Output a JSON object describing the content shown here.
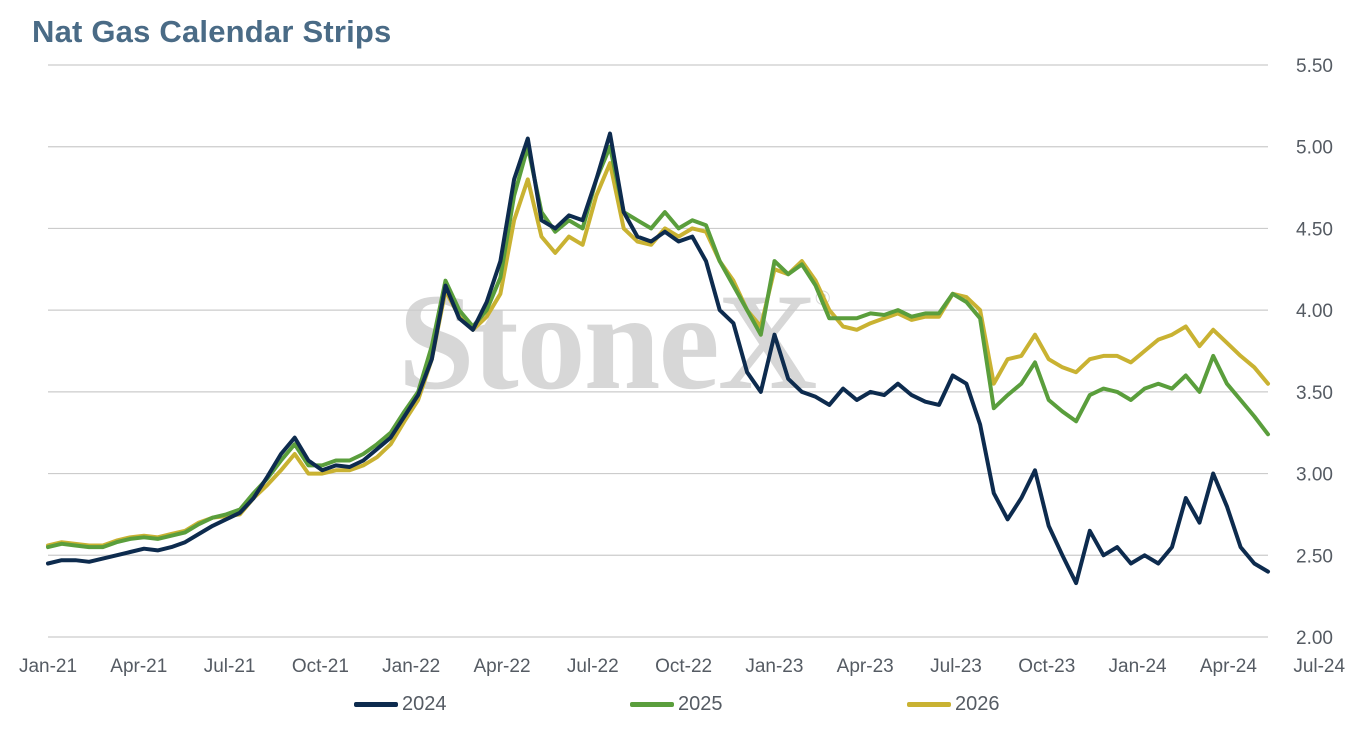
{
  "title": "Nat Gas Calendar Strips",
  "watermark": {
    "text": "StoneX",
    "mark": "®"
  },
  "colors": {
    "s2024": "#0d2b4e",
    "s2025": "#5a9e3c",
    "s2026": "#c9b232",
    "grid": "#cccccc",
    "title": "#4a6b86"
  },
  "chart_data": {
    "type": "line",
    "title": "Nat Gas Calendar Strips",
    "xlabel": "",
    "ylabel": "",
    "ylim": [
      2.0,
      5.5
    ],
    "yticks": [
      "5.50",
      "5.00",
      "4.50",
      "4.00",
      "3.50",
      "3.00",
      "2.50",
      "2.00"
    ],
    "ytick_values": [
      5.5,
      5.0,
      4.5,
      4.0,
      3.5,
      3.0,
      2.5,
      2.0
    ],
    "xticks": [
      "Jan-21",
      "Apr-21",
      "Jul-21",
      "Oct-21",
      "Jan-22",
      "Apr-22",
      "Jul-22",
      "Oct-22",
      "Jan-23",
      "Apr-23",
      "Jul-23",
      "Oct-23",
      "Jan-24",
      "Apr-24",
      "Jul-24"
    ],
    "y_axis_side": "right",
    "grid": true,
    "legend": "bottom",
    "series": [
      {
        "name": "2024",
        "color": "#0d2b4e",
        "values": [
          2.45,
          2.47,
          2.47,
          2.46,
          2.48,
          2.5,
          2.52,
          2.54,
          2.53,
          2.55,
          2.58,
          2.63,
          2.68,
          2.72,
          2.76,
          2.85,
          2.98,
          3.12,
          3.22,
          3.08,
          3.02,
          3.05,
          3.04,
          3.08,
          3.15,
          3.22,
          3.35,
          3.48,
          3.7,
          4.15,
          3.95,
          3.88,
          4.05,
          4.3,
          4.8,
          5.05,
          4.55,
          4.5,
          4.58,
          4.55,
          4.8,
          5.08,
          4.6,
          4.45,
          4.42,
          4.48,
          4.42,
          4.45,
          4.3,
          4.0,
          3.92,
          3.62,
          3.5,
          3.85,
          3.58,
          3.5,
          3.47,
          3.42,
          3.52,
          3.45,
          3.5,
          3.48,
          3.55,
          3.48,
          3.44,
          3.42,
          3.6,
          3.55,
          3.3,
          2.88,
          2.72,
          2.85,
          3.02,
          2.68,
          2.5,
          2.33,
          2.65,
          2.5,
          2.55,
          2.45,
          2.5,
          2.45,
          2.55,
          2.85,
          2.7,
          3.0,
          2.8,
          2.55,
          2.45,
          2.4
        ]
      },
      {
        "name": "2025",
        "color": "#5a9e3c",
        "values": [
          2.55,
          2.57,
          2.56,
          2.55,
          2.55,
          2.58,
          2.6,
          2.61,
          2.6,
          2.62,
          2.64,
          2.69,
          2.73,
          2.75,
          2.78,
          2.88,
          2.97,
          3.08,
          3.18,
          3.05,
          3.05,
          3.08,
          3.08,
          3.12,
          3.18,
          3.25,
          3.38,
          3.5,
          3.78,
          4.18,
          4.0,
          3.9,
          4.0,
          4.2,
          4.7,
          5.0,
          4.6,
          4.48,
          4.55,
          4.5,
          4.8,
          5.0,
          4.6,
          4.55,
          4.5,
          4.6,
          4.5,
          4.55,
          4.52,
          4.3,
          4.15,
          4.0,
          3.85,
          4.3,
          4.22,
          4.28,
          4.15,
          3.95,
          3.95,
          3.95,
          3.98,
          3.97,
          4.0,
          3.96,
          3.98,
          3.98,
          4.1,
          4.05,
          3.95,
          3.4,
          3.48,
          3.55,
          3.68,
          3.45,
          3.38,
          3.32,
          3.48,
          3.52,
          3.5,
          3.45,
          3.52,
          3.55,
          3.52,
          3.6,
          3.5,
          3.72,
          3.55,
          3.45,
          3.35,
          3.24
        ]
      },
      {
        "name": "2026",
        "color": "#c9b232",
        "values": [
          2.56,
          2.58,
          2.57,
          2.56,
          2.56,
          2.59,
          2.61,
          2.62,
          2.61,
          2.63,
          2.65,
          2.7,
          2.73,
          2.74,
          2.75,
          2.85,
          2.93,
          3.02,
          3.12,
          3.0,
          3.0,
          3.02,
          3.02,
          3.05,
          3.1,
          3.18,
          3.32,
          3.45,
          3.7,
          4.12,
          3.96,
          3.88,
          3.96,
          4.1,
          4.55,
          4.8,
          4.45,
          4.35,
          4.45,
          4.4,
          4.7,
          4.9,
          4.5,
          4.42,
          4.4,
          4.5,
          4.45,
          4.5,
          4.48,
          4.3,
          4.18,
          4.0,
          3.9,
          4.25,
          4.22,
          4.3,
          4.18,
          4.0,
          3.9,
          3.88,
          3.92,
          3.95,
          3.98,
          3.94,
          3.96,
          3.96,
          4.1,
          4.08,
          4.0,
          3.55,
          3.7,
          3.72,
          3.85,
          3.7,
          3.65,
          3.62,
          3.7,
          3.72,
          3.72,
          3.68,
          3.75,
          3.82,
          3.85,
          3.9,
          3.78,
          3.88,
          3.8,
          3.72,
          3.65,
          3.55
        ]
      }
    ]
  }
}
